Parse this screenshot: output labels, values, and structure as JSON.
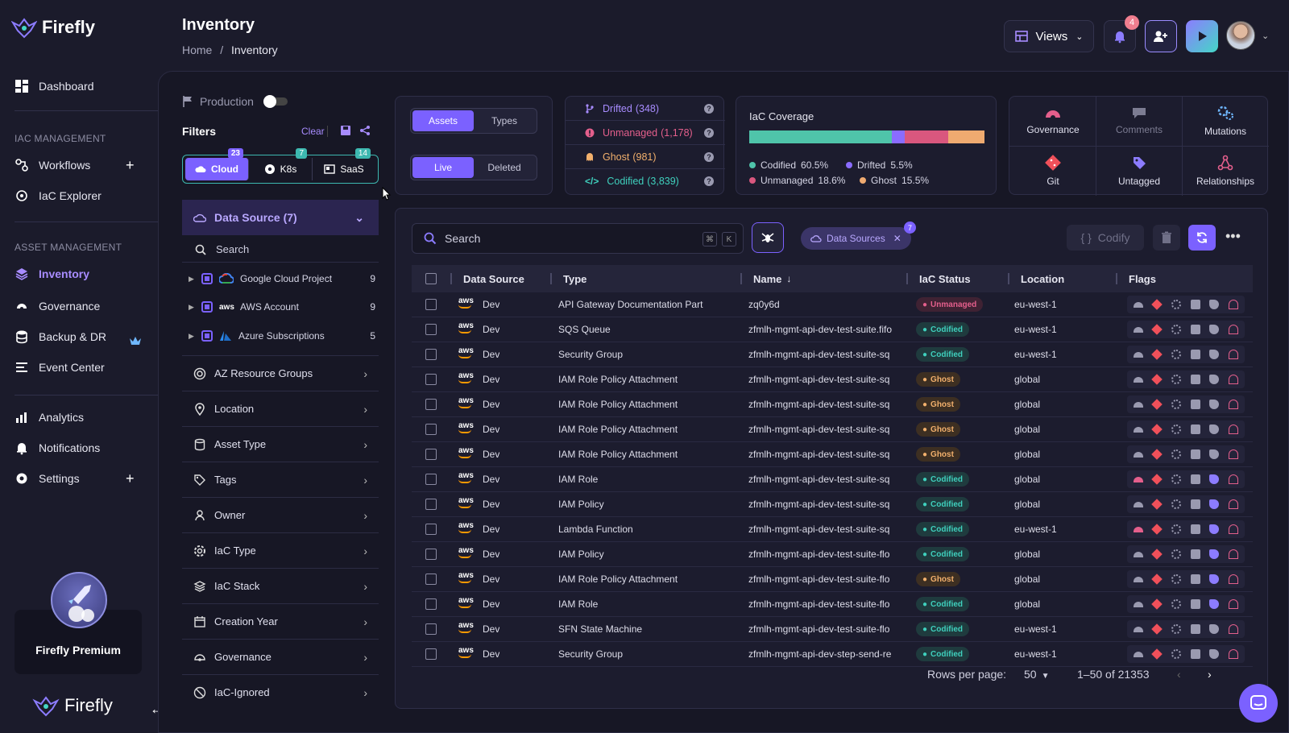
{
  "sidebar": {
    "brand": "Firefly",
    "items": [
      {
        "label": "Dashboard",
        "icon": "dashboard-icon"
      },
      {
        "label": "Workflows",
        "icon": "workflows-icon"
      },
      {
        "label": "IaC Explorer",
        "icon": "iac-explorer-icon"
      },
      {
        "label": "Inventory",
        "icon": "inventory-icon"
      },
      {
        "label": "Governance",
        "icon": "governance-icon"
      },
      {
        "label": "Backup & DR",
        "icon": "backup-icon"
      },
      {
        "label": "Event Center",
        "icon": "event-center-icon"
      },
      {
        "label": "Analytics",
        "icon": "analytics-icon"
      },
      {
        "label": "Notifications",
        "icon": "notifications-icon"
      },
      {
        "label": "Settings",
        "icon": "settings-icon"
      }
    ],
    "sections": {
      "iac": "IAC MANAGEMENT",
      "asset": "ASSET MANAGEMENT"
    },
    "premium_label": "Firefly Premium",
    "footer_brand": "Firefly"
  },
  "header": {
    "title": "Inventory",
    "breadcrumb": [
      "Home",
      "/",
      "Inventory"
    ],
    "views_label": "Views",
    "notification_count": "4"
  },
  "filters": {
    "production_label": "Production",
    "title": "Filters",
    "clear_label": "Clear",
    "providers": [
      {
        "label": "Cloud",
        "count": "23",
        "color": "#7b61ff"
      },
      {
        "label": "K8s",
        "count": "7",
        "color": "#3db8b0"
      },
      {
        "label": "SaaS",
        "count": "14",
        "color": "#3db8b0"
      }
    ],
    "data_source_title": "Data Source (7)",
    "search_placeholder": "Search",
    "data_sources": [
      {
        "label": "Google Cloud Project",
        "count": "9"
      },
      {
        "label": "AWS Account",
        "count": "9"
      },
      {
        "label": "Azure Subscriptions",
        "count": "5"
      }
    ],
    "groups": [
      "AZ Resource Groups",
      "Location",
      "Asset Type",
      "Tags",
      "Owner",
      "IaC Type",
      "IaC Stack",
      "Creation Year",
      "Governance",
      "IaC-Ignored"
    ]
  },
  "toggles": {
    "view": [
      "Assets",
      "Types"
    ],
    "state": [
      "Live",
      "Deleted"
    ]
  },
  "stats": [
    {
      "label": "Drifted",
      "value": "(348)",
      "color": "#a88cff"
    },
    {
      "label": "Unmanaged",
      "value": "(1,178)",
      "color": "#e45f8c"
    },
    {
      "label": "Ghost",
      "value": "(981)",
      "color": "#f2b06c"
    },
    {
      "label": "Codified",
      "value": "(3,839)",
      "color": "#3fd0bd"
    }
  ],
  "coverage": {
    "title": "IaC Coverage",
    "segments": [
      {
        "label": "Codified",
        "pct": "60.5%",
        "value": 60.5,
        "color": "#4fc4aa"
      },
      {
        "label": "Drifted",
        "pct": "5.5%",
        "value": 5.5,
        "color": "#8a6cff"
      },
      {
        "label": "Unmanaged",
        "pct": "18.6%",
        "value": 18.6,
        "color": "#d9577e"
      },
      {
        "label": "Ghost",
        "pct": "15.5%",
        "value": 15.5,
        "color": "#efaa70"
      }
    ]
  },
  "actions": [
    "Governance",
    "Comments",
    "Mutations",
    "Git",
    "Untagged",
    "Relationships"
  ],
  "table": {
    "search_placeholder": "Search",
    "kbd": [
      "⌘",
      "K"
    ],
    "chip_label": "Data Sources",
    "chip_count": "7",
    "codify_label": "Codify",
    "headers": [
      "Data Source",
      "Type",
      "Name",
      "IaC Status",
      "Location",
      "Flags"
    ],
    "rows": [
      {
        "source": "Dev",
        "type": "API Gateway Documentation Part",
        "name": "zq0y6d",
        "status": "Unmanaged",
        "location": "eu-west-1"
      },
      {
        "source": "Dev",
        "type": "SQS Queue",
        "name": "zfmlh-mgmt-api-dev-test-suite.fifo",
        "status": "Codified",
        "location": "eu-west-1"
      },
      {
        "source": "Dev",
        "type": "Security Group",
        "name": "zfmlh-mgmt-api-dev-test-suite-sq",
        "status": "Codified",
        "location": "eu-west-1"
      },
      {
        "source": "Dev",
        "type": "IAM Role Policy Attachment",
        "name": "zfmlh-mgmt-api-dev-test-suite-sq",
        "status": "Ghost",
        "location": "global"
      },
      {
        "source": "Dev",
        "type": "IAM Role Policy Attachment",
        "name": "zfmlh-mgmt-api-dev-test-suite-sq",
        "status": "Ghost",
        "location": "global"
      },
      {
        "source": "Dev",
        "type": "IAM Role Policy Attachment",
        "name": "zfmlh-mgmt-api-dev-test-suite-sq",
        "status": "Ghost",
        "location": "global"
      },
      {
        "source": "Dev",
        "type": "IAM Role Policy Attachment",
        "name": "zfmlh-mgmt-api-dev-test-suite-sq",
        "status": "Ghost",
        "location": "global"
      },
      {
        "source": "Dev",
        "type": "IAM Role",
        "name": "zfmlh-mgmt-api-dev-test-suite-sq",
        "status": "Codified",
        "location": "global"
      },
      {
        "source": "Dev",
        "type": "IAM Policy",
        "name": "zfmlh-mgmt-api-dev-test-suite-sq",
        "status": "Codified",
        "location": "global"
      },
      {
        "source": "Dev",
        "type": "Lambda Function",
        "name": "zfmlh-mgmt-api-dev-test-suite-sq",
        "status": "Codified",
        "location": "eu-west-1"
      },
      {
        "source": "Dev",
        "type": "IAM Policy",
        "name": "zfmlh-mgmt-api-dev-test-suite-flo",
        "status": "Codified",
        "location": "global"
      },
      {
        "source": "Dev",
        "type": "IAM Role Policy Attachment",
        "name": "zfmlh-mgmt-api-dev-test-suite-flo",
        "status": "Ghost",
        "location": "global"
      },
      {
        "source": "Dev",
        "type": "IAM Role",
        "name": "zfmlh-mgmt-api-dev-test-suite-flo",
        "status": "Codified",
        "location": "global"
      },
      {
        "source": "Dev",
        "type": "SFN State Machine",
        "name": "zfmlh-mgmt-api-dev-test-suite-flo",
        "status": "Codified",
        "location": "eu-west-1"
      },
      {
        "source": "Dev",
        "type": "Security Group",
        "name": "zfmlh-mgmt-api-dev-step-send-re",
        "status": "Codified",
        "location": "eu-west-1"
      }
    ],
    "rows_per_page_label": "Rows per page:",
    "rows_per_page": "50",
    "range": "1–50 of 21353"
  }
}
